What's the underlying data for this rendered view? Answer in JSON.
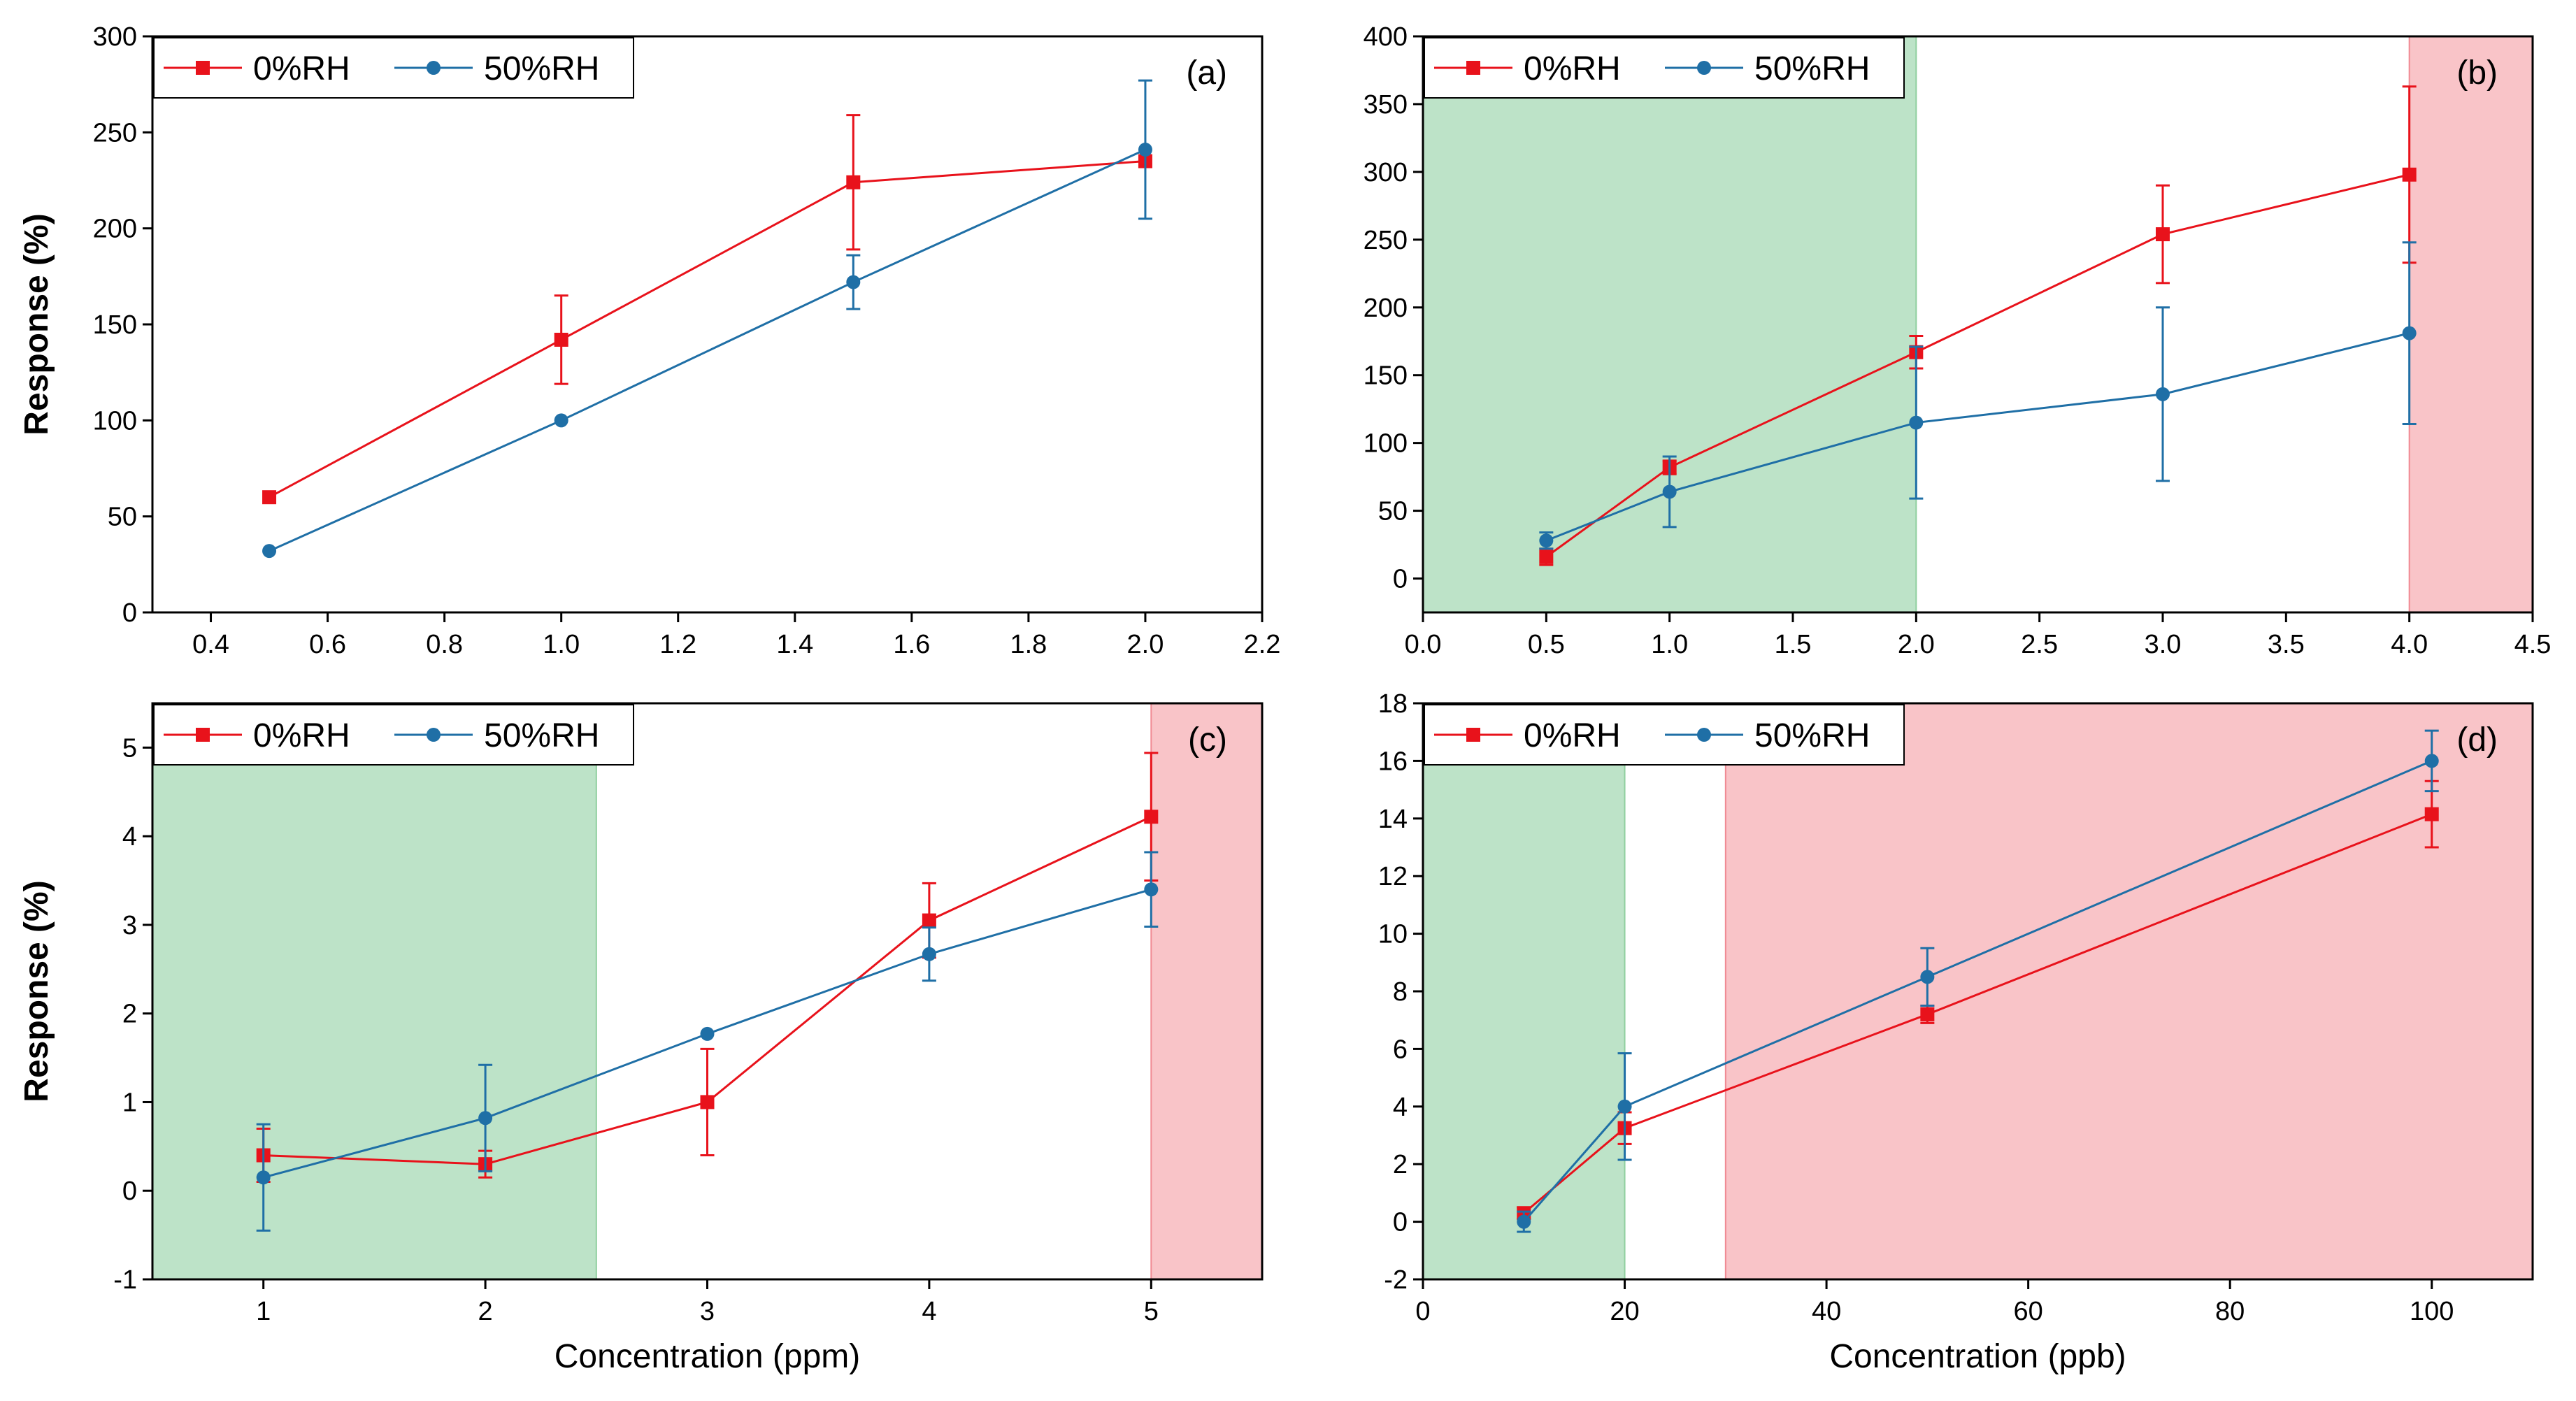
{
  "chart_data": [
    {
      "panel": "(a)",
      "type": "line",
      "title": "",
      "xlabel": "",
      "ylabel": "Response (%)",
      "xlim": [
        0.3,
        2.2
      ],
      "ylim": [
        0,
        300
      ],
      "xticks": [
        "0.4",
        "0.6",
        "0.8",
        "1.0",
        "1.2",
        "1.4",
        "1.6",
        "1.8",
        "2.0",
        "2.2"
      ],
      "yticks": [
        "0",
        "50",
        "100",
        "150",
        "200",
        "250",
        "300"
      ],
      "legend": "top-left",
      "grid": false,
      "shaded_regions": [],
      "series": [
        {
          "name": "0%RH",
          "color": "#e8121b",
          "marker": "square",
          "x": [
            0.5,
            1.0,
            1.5,
            2.0
          ],
          "y": [
            60,
            142,
            224,
            235
          ],
          "err": [
            0,
            23,
            35,
            0
          ]
        },
        {
          "name": "50%RH",
          "color": "#1f6fa6",
          "marker": "circle",
          "x": [
            0.5,
            1.0,
            1.5,
            2.0
          ],
          "y": [
            32,
            100,
            172,
            241
          ],
          "err": [
            0,
            0,
            14,
            36
          ]
        }
      ]
    },
    {
      "panel": "(b)",
      "type": "line",
      "title": "",
      "xlabel": "",
      "ylabel": "",
      "xlim": [
        0.0,
        4.5
      ],
      "ylim": [
        -25,
        400
      ],
      "xticks": [
        "0.0",
        "0.5",
        "1.0",
        "1.5",
        "2.0",
        "2.5",
        "3.0",
        "3.5",
        "4.0",
        "4.5"
      ],
      "yticks": [
        "0",
        "50",
        "100",
        "150",
        "200",
        "250",
        "300",
        "350",
        "400"
      ],
      "legend": "top-left",
      "grid": false,
      "shaded_regions": [
        {
          "x0": 0.0,
          "x1": 2.0,
          "color": "#bde3c8"
        },
        {
          "x0": 4.0,
          "x1": 4.5,
          "color": "#f9c4c8"
        }
      ],
      "series": [
        {
          "name": "0%RH",
          "color": "#e8121b",
          "marker": "square",
          "x": [
            0.5,
            1.0,
            2.0,
            3.0,
            4.0
          ],
          "y": [
            16,
            82,
            167,
            254,
            298
          ],
          "err": [
            6,
            5,
            12,
            36,
            65
          ]
        },
        {
          "name": "50%RH",
          "color": "#1f6fa6",
          "marker": "circle",
          "x": [
            0.5,
            1.0,
            2.0,
            3.0,
            4.0
          ],
          "y": [
            28,
            64,
            115,
            136,
            181
          ],
          "err": [
            6,
            26,
            56,
            64,
            67
          ]
        }
      ]
    },
    {
      "panel": "(c)",
      "type": "line",
      "title": "",
      "xlabel": "Concentration (ppm)",
      "ylabel": "Response (%)",
      "xlim": [
        0.5,
        5.5
      ],
      "ylim": [
        -1,
        5.5
      ],
      "xticks": [
        "1",
        "2",
        "3",
        "4",
        "5"
      ],
      "yticks": [
        "-1",
        "0",
        "1",
        "2",
        "3",
        "4",
        "5"
      ],
      "legend": "top-left",
      "grid": false,
      "shaded_regions": [
        {
          "x0": 0.5,
          "x1": 2.5,
          "color": "#bde3c8"
        },
        {
          "x0": 5.0,
          "x1": 5.5,
          "color": "#f9c4c8"
        }
      ],
      "series": [
        {
          "name": "0%RH",
          "color": "#e8121b",
          "marker": "square",
          "x": [
            1,
            2,
            3,
            4,
            5
          ],
          "y": [
            0.4,
            0.3,
            1.0,
            3.05,
            4.22
          ],
          "err": [
            0.3,
            0.15,
            0.6,
            0.42,
            0.72
          ]
        },
        {
          "name": "50%RH",
          "color": "#1f6fa6",
          "marker": "circle",
          "x": [
            1,
            2,
            3,
            4,
            5
          ],
          "y": [
            0.15,
            0.82,
            1.77,
            2.67,
            3.4
          ],
          "err": [
            0.6,
            0.6,
            0,
            0.3,
            0.42
          ]
        }
      ]
    },
    {
      "panel": "(d)",
      "type": "line",
      "title": "",
      "xlabel": "Concentration (ppb)",
      "ylabel": "",
      "xlim": [
        0,
        110
      ],
      "ylim": [
        -2,
        18
      ],
      "xticks": [
        "0",
        "20",
        "40",
        "60",
        "80",
        "100"
      ],
      "yticks": [
        "-2",
        "0",
        "2",
        "4",
        "6",
        "8",
        "10",
        "12",
        "14",
        "16",
        "18"
      ],
      "legend": "top-left",
      "grid": false,
      "shaded_regions": [
        {
          "x0": 0,
          "x1": 20,
          "color": "#bde3c8"
        },
        {
          "x0": 30,
          "x1": 110,
          "color": "#f9c4c8"
        }
      ],
      "series": [
        {
          "name": "0%RH",
          "color": "#e8121b",
          "marker": "square",
          "x": [
            10,
            20,
            50,
            100
          ],
          "y": [
            0.3,
            3.25,
            7.2,
            14.15
          ],
          "err": [
            0.2,
            0.55,
            0.3,
            1.15
          ]
        },
        {
          "name": "50%RH",
          "color": "#1f6fa6",
          "marker": "circle",
          "x": [
            10,
            20,
            50,
            100
          ],
          "y": [
            0.0,
            4.0,
            8.5,
            16.0
          ],
          "err": [
            0.35,
            1.85,
            1.0,
            1.05
          ]
        }
      ]
    }
  ]
}
